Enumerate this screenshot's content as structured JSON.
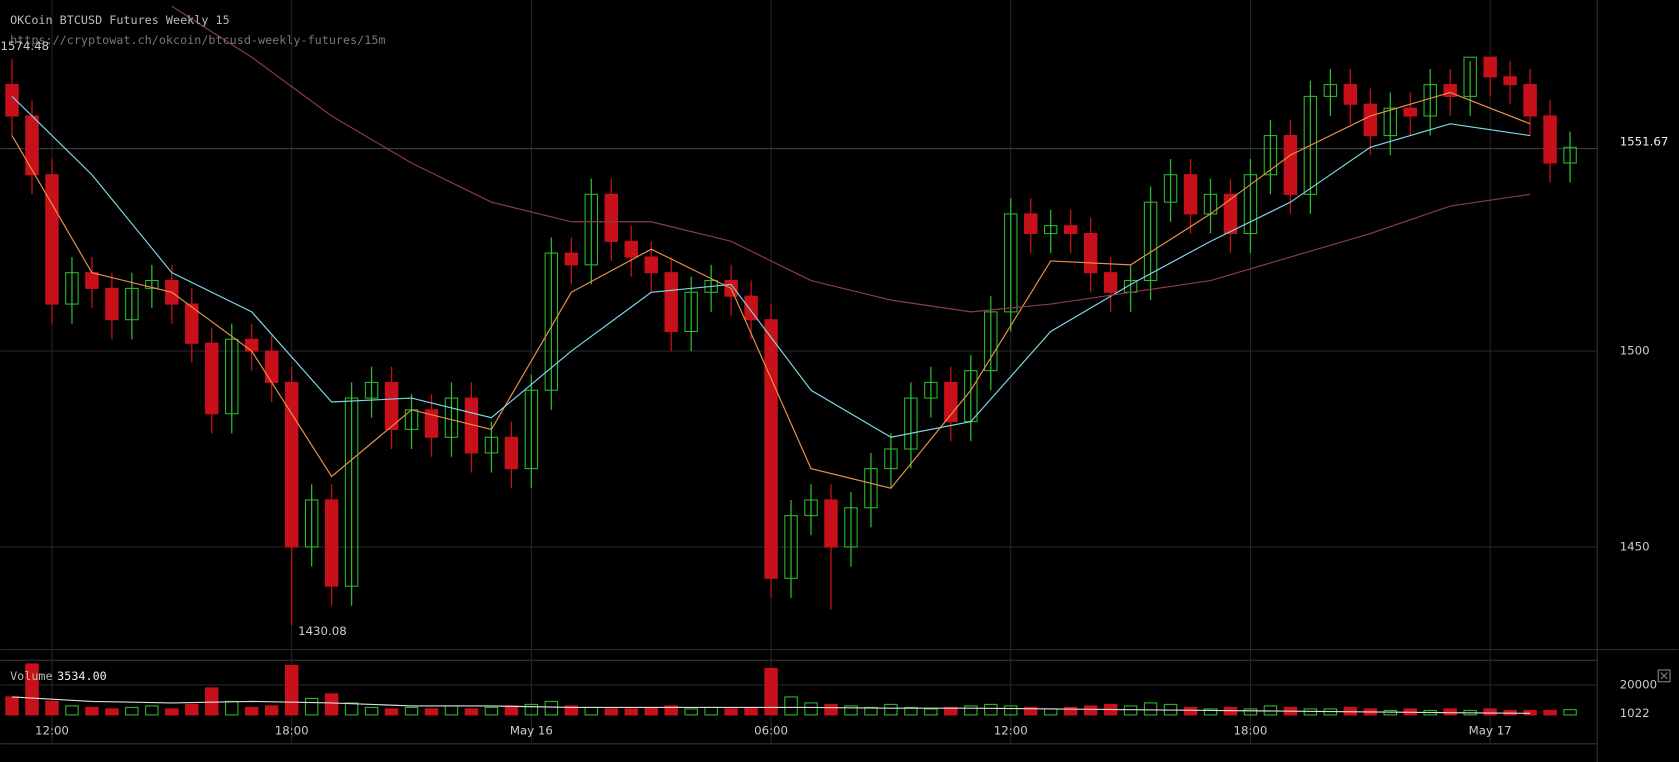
{
  "chart_data": {
    "type": "candlestick",
    "title": "OKCoin BTCUSD Futures Weekly 15",
    "subtitle": "https://cryptowat.ch/okcoin/btcusd-weekly-futures/15m",
    "up_color": "#2db82d",
    "down_color": "#c8101a",
    "x": [
      -1,
      -0.5,
      0,
      0.5,
      1,
      1.5,
      2,
      2.5,
      3,
      3.5,
      4,
      4.5,
      5,
      5.5,
      6,
      6.5,
      7,
      7.5,
      8,
      8.5,
      9,
      9.5,
      10,
      10.5,
      11,
      11.5,
      12,
      12.5,
      13,
      13.5,
      14,
      14.5,
      15,
      15.5,
      16,
      16.5,
      17,
      17.5,
      18,
      18.5,
      19,
      19.5,
      20,
      20.5,
      21,
      21.5,
      22,
      22.5,
      23,
      23.5,
      24,
      24.5,
      25,
      25.5,
      26,
      26.5,
      27,
      27.5,
      28,
      28.5,
      29,
      29.5,
      30,
      30.5,
      31,
      31.5,
      32,
      32.5,
      33,
      33.5,
      34,
      34.5,
      35,
      35.5,
      36,
      36.5,
      37,
      37.5,
      38
    ],
    "open": [
      1568,
      1560,
      1545,
      1512,
      1520,
      1516,
      1508,
      1516,
      1518,
      1512,
      1502,
      1484,
      1503,
      1500,
      1492,
      1450,
      1462,
      1440,
      1488,
      1492,
      1480,
      1485,
      1478,
      1488,
      1474,
      1478,
      1470,
      1490,
      1525,
      1522,
      1540,
      1528,
      1524,
      1520,
      1505,
      1515,
      1518,
      1514,
      1508,
      1442,
      1458,
      1462,
      1450,
      1460,
      1470,
      1475,
      1488,
      1492,
      1482,
      1495,
      1510,
      1535,
      1530,
      1532,
      1530,
      1520,
      1515,
      1518,
      1538,
      1545,
      1535,
      1540,
      1530,
      1545,
      1555,
      1540,
      1565,
      1568,
      1563,
      1555,
      1562,
      1560,
      1568,
      1565,
      1575,
      1570,
      1568,
      1560,
      1548
    ],
    "high": [
      1574.48,
      1564,
      1549,
      1524,
      1524,
      1520,
      1520,
      1522,
      1522,
      1516,
      1506,
      1507,
      1507,
      1504,
      1496,
      1466,
      1466,
      1492,
      1496,
      1496,
      1489,
      1489,
      1492,
      1492,
      1482,
      1482,
      1494,
      1529,
      1529,
      1544,
      1544,
      1532,
      1528,
      1524,
      1519,
      1522,
      1522,
      1518,
      1512,
      1462,
      1466,
      1466,
      1464,
      1474,
      1479,
      1492,
      1496,
      1496,
      1499,
      1514,
      1539,
      1539,
      1536,
      1536,
      1534,
      1524,
      1522,
      1542,
      1549,
      1549,
      1544,
      1544,
      1549,
      1559,
      1559,
      1569,
      1572,
      1572,
      1567,
      1566,
      1566,
      1572,
      1572,
      1574,
      1574,
      1574,
      1572,
      1564,
      1556
    ],
    "low": [
      1555,
      1540,
      1507,
      1507,
      1511,
      1503,
      1503,
      1511,
      1507,
      1497,
      1479,
      1479,
      1495,
      1487,
      1430.08,
      1445,
      1435,
      1435,
      1483,
      1475,
      1475,
      1473,
      1473,
      1469,
      1469,
      1465,
      1465,
      1485,
      1517,
      1517,
      1523,
      1519,
      1515,
      1500,
      1500,
      1510,
      1509,
      1503,
      1437,
      1437,
      1453,
      1434,
      1445,
      1455,
      1465,
      1470,
      1483,
      1477,
      1477,
      1490,
      1505,
      1525,
      1525,
      1525,
      1515,
      1510,
      1510,
      1513,
      1533,
      1530,
      1530,
      1525,
      1525,
      1540,
      1535,
      1535,
      1560,
      1558,
      1550,
      1550,
      1555,
      1555,
      1560,
      1560,
      1565,
      1563,
      1555,
      1543,
      1543
    ],
    "close": [
      1560,
      1545,
      1512,
      1520,
      1516,
      1508,
      1516,
      1518,
      1512,
      1502,
      1484,
      1503,
      1500,
      1492,
      1450,
      1462,
      1440,
      1488,
      1492,
      1480,
      1485,
      1478,
      1488,
      1474,
      1478,
      1470,
      1490,
      1525,
      1522,
      1540,
      1528,
      1524,
      1520,
      1505,
      1515,
      1518,
      1514,
      1508,
      1442,
      1458,
      1462,
      1450,
      1460,
      1470,
      1475,
      1488,
      1492,
      1482,
      1495,
      1510,
      1535,
      1530,
      1532,
      1530,
      1520,
      1515,
      1518,
      1538,
      1545,
      1535,
      1540,
      1530,
      1545,
      1555,
      1540,
      1565,
      1568,
      1563,
      1555,
      1562,
      1560,
      1568,
      1565,
      1575,
      1570,
      1568,
      1560,
      1548,
      1552
    ],
    "lines": [
      {
        "color": "#e8904a",
        "x": [
          -1,
          1,
          3,
          5,
          7,
          9,
          11,
          13,
          15,
          17,
          19,
          21,
          23,
          25,
          27,
          29,
          31,
          33,
          35,
          37
        ],
        "values": [
          1555,
          1520,
          1515,
          1500,
          1468,
          1485,
          1480,
          1515,
          1526,
          1516,
          1470,
          1465,
          1490,
          1523,
          1522,
          1535,
          1550,
          1560,
          1566,
          1558
        ]
      },
      {
        "color": "#7fd6e8",
        "x": [
          -1,
          1,
          3,
          5,
          7,
          9,
          11,
          13,
          15,
          17,
          19,
          21,
          23,
          25,
          27,
          29,
          31,
          33,
          35,
          37
        ],
        "values": [
          1565,
          1545,
          1520,
          1510,
          1487,
          1488,
          1483,
          1500,
          1515,
          1517,
          1490,
          1478,
          1482,
          1505,
          1517,
          1528,
          1538,
          1552,
          1558,
          1555
        ]
      },
      {
        "color": "#8a3a4e",
        "x": [
          -1,
          1,
          3,
          5,
          7,
          9,
          11,
          13,
          15,
          17,
          19,
          21,
          23,
          25,
          27,
          29,
          31,
          33,
          35,
          37
        ],
        "values": [
          null,
          null,
          1588,
          1575,
          1560,
          1548,
          1538,
          1533,
          1533,
          1528,
          1518,
          1513,
          1510,
          1512,
          1515,
          1518,
          1524,
          1530,
          1537,
          1540
        ]
      }
    ],
    "xlim": [
      -1.29,
      38.68
    ],
    "xticks": [
      {
        "value": 0,
        "label": "12:00"
      },
      {
        "value": 6,
        "label": "18:00"
      },
      {
        "value": 12,
        "label": "May 16"
      },
      {
        "value": 18,
        "label": "06:00"
      },
      {
        "value": 24,
        "label": "12:00"
      },
      {
        "value": 30,
        "label": "18:00"
      },
      {
        "value": 36,
        "label": "May 17"
      }
    ],
    "ylim": [
      1423.8,
      1589.6
    ],
    "yticks": [
      1450,
      1500
    ],
    "last_price": 1551.67,
    "max_label": 1574.48,
    "min_label": 1430.08,
    "grid": true,
    "volume": {
      "title": "Volume",
      "current_label": "3534.00",
      "values": [
        12000,
        34000,
        9000,
        6000,
        5000,
        4000,
        5000,
        6000,
        4000,
        7000,
        18000,
        9000,
        5000,
        6000,
        33000,
        11000,
        14000,
        8000,
        5000,
        4000,
        5000,
        4000,
        6000,
        4000,
        5000,
        6000,
        7000,
        9000,
        6000,
        5000,
        4000,
        4000,
        5000,
        6000,
        4000,
        5000,
        4000,
        5000,
        31000,
        12000,
        8000,
        7000,
        6000,
        5000,
        7000,
        5000,
        4000,
        5000,
        6000,
        7000,
        6000,
        5000,
        4000,
        5000,
        6000,
        7000,
        6000,
        8000,
        7000,
        5000,
        4000,
        5000,
        4000,
        6000,
        5000,
        4000,
        4000,
        5000,
        4000,
        3000,
        4000,
        3000,
        4000,
        3000,
        4000,
        3000,
        3000,
        3000,
        3534
      ],
      "avg": {
        "color": "#dddddd",
        "x": [
          -1,
          1,
          3,
          5,
          7,
          9,
          11,
          13,
          15,
          17,
          19,
          21,
          23,
          25,
          27,
          29,
          31,
          33,
          35,
          37
        ],
        "values": [
          12000,
          9000,
          8000,
          9000,
          8000,
          6000,
          6000,
          5000,
          5000,
          5000,
          5000,
          4500,
          4500,
          4000,
          3500,
          3000,
          2500,
          2000,
          1500,
          1022
        ]
      },
      "ylim": [
        0,
        36400
      ],
      "yticks": [
        20000
      ]
    }
  }
}
